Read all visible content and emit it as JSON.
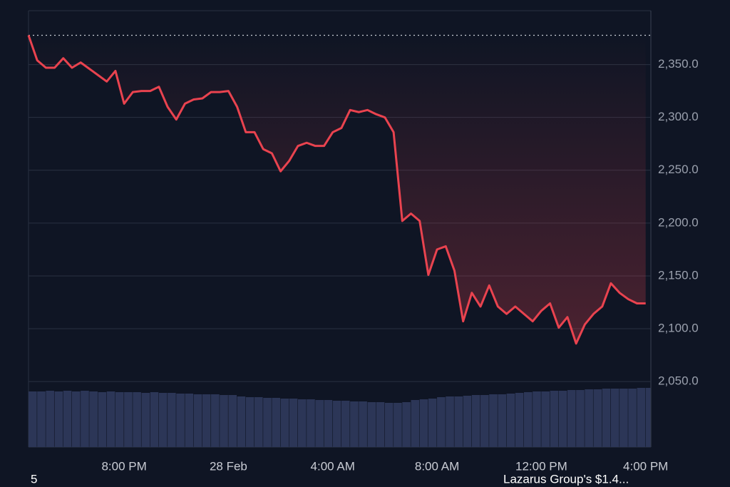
{
  "chart_data": {
    "type": "line",
    "series": [
      {
        "color": "#e9434f",
        "values": [
          2377.7,
          2354,
          2347,
          2347,
          2356,
          2347,
          2352,
          2346,
          2340,
          2334,
          2344,
          2313,
          2324,
          2325,
          2325,
          2329,
          2310,
          2298,
          2313,
          2317,
          2318,
          2324,
          2324,
          2325,
          2310,
          2286,
          2286,
          2270,
          2266,
          2249,
          2259,
          2273,
          2276,
          2273,
          2273,
          2286,
          2290,
          2307,
          2305,
          2307,
          2303,
          2300,
          2286,
          2202,
          2209,
          2202,
          2151,
          2175,
          2178,
          2155,
          2107,
          2134,
          2121,
          2141,
          2121,
          2114,
          2121,
          2114,
          2107,
          2117,
          2124,
          2101,
          2111,
          2086,
          2104,
          2114,
          2121,
          2143,
          2134,
          2128,
          2124,
          2124
        ]
      }
    ],
    "volume_values": [
      78,
      78,
      79,
      78,
      79,
      78,
      79,
      78,
      77,
      78,
      77,
      77,
      77,
      76,
      77,
      76,
      76,
      75,
      75,
      74,
      74,
      74,
      73,
      73,
      71,
      70,
      70,
      69,
      69,
      68,
      68,
      67,
      67,
      66,
      66,
      65,
      65,
      64,
      64,
      63,
      63,
      62,
      62,
      63,
      66,
      67,
      68,
      70,
      71,
      71,
      72,
      73,
      73,
      74,
      74,
      75,
      76,
      77,
      78,
      78,
      79,
      79,
      80,
      80,
      81,
      81,
      82,
      82,
      82,
      82,
      83,
      83
    ],
    "volume_color": "#2c3657",
    "volume_lim": [
      0,
      100
    ],
    "xlim": [
      0,
      71.6
    ],
    "xticks": [
      {
        "value": 11,
        "label": "8:00 PM"
      },
      {
        "value": 23,
        "label": "28 Feb"
      },
      {
        "value": 35,
        "label": "4:00 AM"
      },
      {
        "value": 47,
        "label": "8:00 AM"
      },
      {
        "value": 59,
        "label": "12:00 PM"
      },
      {
        "value": 71,
        "label": "4:00 PM"
      }
    ],
    "ylim": [
      1988,
      2401
    ],
    "yticks": [
      {
        "value": 2050,
        "label": "2,050.0"
      },
      {
        "value": 2100,
        "label": "2,100.0"
      },
      {
        "value": 2150,
        "label": "2,150.0"
      },
      {
        "value": 2200,
        "label": "2,200.0"
      },
      {
        "value": 2250,
        "label": "2,250.0"
      },
      {
        "value": 2300,
        "label": "2,300.0"
      },
      {
        "value": 2350,
        "label": "2,350.0"
      }
    ],
    "grid": true,
    "annotations": [
      "5",
      "Lazarus Group's $1.4..."
    ]
  }
}
